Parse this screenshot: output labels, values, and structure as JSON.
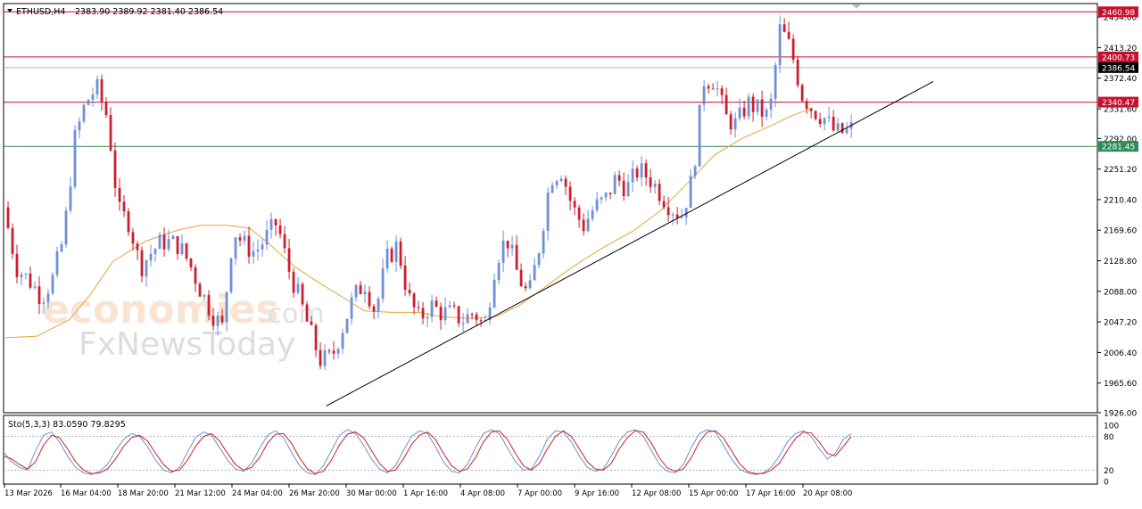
{
  "header": {
    "symbol": "ETHUSD,H4",
    "ohlc": "2383.90 2389.92 2381.40 2386.54",
    "indicator": "Sto(5,3,3) 83.0590 79.8295"
  },
  "watermark": {
    "line1": "economies",
    "line1_suffix": ".com",
    "line2": "FxNewsToday"
  },
  "colors": {
    "bull": "#6f8fd6",
    "bear": "#cc1f2e",
    "ma": "#e8a33c",
    "resistance": "#c8102e",
    "support": "#2e8b57",
    "trend": "#000000",
    "stoch_main": "#6f8fd6",
    "stoch_signal": "#cc1f2e",
    "current_price": "#000000"
  },
  "chart_data": [
    {
      "type": "candlestick",
      "title": "",
      "ylim": [
        1926.0,
        2472.0
      ],
      "y_ticks": [
        "2454.00",
        "2413.20",
        "2372.40",
        "2331.60",
        "2292.00",
        "2251.20",
        "2210.40",
        "2169.60",
        "2128.80",
        "2088.00",
        "2047.20",
        "2006.40",
        "1965.60",
        "1926.00"
      ],
      "x_ticks": [
        "13 Mar 2026",
        "16 Mar 04:00",
        "18 Mar 20:00",
        "21 Mar 12:00",
        "24 Mar 04:00",
        "26 Mar 20:00",
        "30 Mar 00:00",
        "1 Apr 16:00",
        "4 Apr 08:00",
        "7 Apr 00:00",
        "9 Apr 16:00",
        "12 Apr 08:00",
        "15 Apr 00:00",
        "17 Apr 16:00",
        "20 Apr 08:00"
      ],
      "horizontal_levels": [
        {
          "label": "2460.98",
          "value": 2460.98,
          "kind": "resistance"
        },
        {
          "label": "2400.73",
          "value": 2400.73,
          "kind": "resistance"
        },
        {
          "label": "2340.47",
          "value": 2340.47,
          "kind": "resistance"
        },
        {
          "label": "2281.45",
          "value": 2281.45,
          "kind": "support"
        }
      ],
      "current_price": {
        "label": "2386.54",
        "value": 2386.54
      },
      "trendline": {
        "from": [
          0.295,
          1935
        ],
        "to": [
          0.85,
          2368
        ]
      },
      "ma_anchors": [
        [
          0.0,
          2026
        ],
        [
          0.03,
          2028
        ],
        [
          0.06,
          2050
        ],
        [
          0.08,
          2085
        ],
        [
          0.1,
          2128
        ],
        [
          0.13,
          2155
        ],
        [
          0.16,
          2170
        ],
        [
          0.18,
          2176
        ],
        [
          0.205,
          2176
        ],
        [
          0.225,
          2172
        ],
        [
          0.24,
          2155
        ],
        [
          0.265,
          2122
        ],
        [
          0.29,
          2098
        ],
        [
          0.31,
          2080
        ],
        [
          0.33,
          2062
        ],
        [
          0.355,
          2060
        ],
        [
          0.38,
          2060
        ],
        [
          0.4,
          2054
        ],
        [
          0.425,
          2052
        ],
        [
          0.45,
          2054
        ],
        [
          0.47,
          2068
        ],
        [
          0.49,
          2088
        ],
        [
          0.51,
          2110
        ],
        [
          0.53,
          2130
        ],
        [
          0.55,
          2148
        ],
        [
          0.575,
          2168
        ],
        [
          0.6,
          2195
        ],
        [
          0.625,
          2232
        ],
        [
          0.65,
          2270
        ],
        [
          0.675,
          2292
        ],
        [
          0.7,
          2308
        ],
        [
          0.72,
          2322
        ],
        [
          0.74,
          2333
        ]
      ],
      "price_anchors": [
        [
          0.0,
          2200
        ],
        [
          0.012,
          2120
        ],
        [
          0.025,
          2100
        ],
        [
          0.035,
          2080
        ],
        [
          0.045,
          2105
        ],
        [
          0.055,
          2160
        ],
        [
          0.065,
          2290
        ],
        [
          0.075,
          2340
        ],
        [
          0.085,
          2360
        ],
        [
          0.095,
          2320
        ],
        [
          0.105,
          2195
        ],
        [
          0.115,
          2180
        ],
        [
          0.125,
          2120
        ],
        [
          0.135,
          2140
        ],
        [
          0.145,
          2155
        ],
        [
          0.16,
          2150
        ],
        [
          0.17,
          2125
        ],
        [
          0.18,
          2090
        ],
        [
          0.19,
          2060
        ],
        [
          0.2,
          2040
        ],
        [
          0.21,
          2170
        ],
        [
          0.22,
          2150
        ],
        [
          0.23,
          2140
        ],
        [
          0.24,
          2160
        ],
        [
          0.25,
          2180
        ],
        [
          0.26,
          2120
        ],
        [
          0.27,
          2080
        ],
        [
          0.28,
          2035
        ],
        [
          0.29,
          1995
        ],
        [
          0.3,
          2000
        ],
        [
          0.31,
          2040
        ],
        [
          0.32,
          2080
        ],
        [
          0.33,
          2100
        ],
        [
          0.34,
          2060
        ],
        [
          0.35,
          2130
        ],
        [
          0.36,
          2150
        ],
        [
          0.37,
          2080
        ],
        [
          0.38,
          2050
        ],
        [
          0.39,
          2070
        ],
        [
          0.4,
          2060
        ],
        [
          0.41,
          2058
        ],
        [
          0.42,
          2050
        ],
        [
          0.43,
          2060
        ],
        [
          0.44,
          2040
        ],
        [
          0.45,
          2130
        ],
        [
          0.46,
          2160
        ],
        [
          0.47,
          2110
        ],
        [
          0.48,
          2080
        ],
        [
          0.49,
          2150
        ],
        [
          0.5,
          2240
        ],
        [
          0.51,
          2250
        ],
        [
          0.52,
          2200
        ],
        [
          0.53,
          2175
        ],
        [
          0.54,
          2200
        ],
        [
          0.55,
          2210
        ],
        [
          0.56,
          2240
        ],
        [
          0.57,
          2225
        ],
        [
          0.58,
          2250
        ],
        [
          0.59,
          2240
        ],
        [
          0.6,
          2220
        ],
        [
          0.61,
          2200
        ],
        [
          0.62,
          2190
        ],
        [
          0.63,
          2240
        ],
        [
          0.64,
          2370
        ],
        [
          0.65,
          2370
        ],
        [
          0.66,
          2320
        ],
        [
          0.67,
          2310
        ],
        [
          0.68,
          2340
        ],
        [
          0.69,
          2330
        ],
        [
          0.7,
          2320
        ],
        [
          0.71,
          2440
        ],
        [
          0.72,
          2410
        ],
        [
          0.73,
          2350
        ],
        [
          0.74,
          2330
        ],
        [
          0.75,
          2320
        ],
        [
          0.76,
          2300
        ],
        [
          0.77,
          2300
        ],
        [
          0.78,
          2310
        ],
        [
          0.79,
          2330
        ],
        [
          0.8,
          2318
        ]
      ]
    },
    {
      "type": "line",
      "title": "",
      "ylim": [
        0,
        100
      ],
      "y_ticks": [
        "100",
        "80",
        "20",
        "0"
      ],
      "levels": [
        80,
        20
      ],
      "series": [
        {
          "values": [
            52,
            35,
            25,
            20,
            55,
            82,
            88,
            70,
            45,
            25,
            15,
            12,
            18,
            30,
            55,
            75,
            85,
            80,
            62,
            38,
            20,
            15,
            25,
            52,
            78,
            88,
            82,
            60,
            38,
            22,
            18,
            32,
            58,
            82,
            90,
            78,
            52,
            28,
            15,
            12,
            28,
            55,
            82,
            92,
            85,
            65,
            40,
            22,
            15,
            28,
            55,
            80,
            90,
            85,
            62,
            35,
            18,
            15,
            30,
            60,
            85,
            92,
            85,
            60,
            35,
            20,
            22,
            45,
            75,
            90,
            88,
            70,
            45,
            25,
            18,
            22,
            45,
            72,
            88,
            92,
            80,
            55,
            30,
            18,
            15,
            30,
            60,
            85,
            92,
            88,
            65,
            40,
            22,
            15,
            12,
            15,
            25,
            45,
            70,
            85,
            90,
            80,
            58,
            40,
            50,
            75,
            85
          ]
        },
        {
          "values": [
            45,
            40,
            30,
            22,
            35,
            65,
            82,
            78,
            58,
            35,
            20,
            14,
            15,
            22,
            40,
            62,
            78,
            82,
            72,
            50,
            30,
            18,
            20,
            38,
            62,
            80,
            85,
            72,
            50,
            30,
            20,
            25,
            42,
            68,
            84,
            85,
            68,
            42,
            22,
            14,
            18,
            38,
            65,
            84,
            88,
            78,
            55,
            32,
            18,
            20,
            40,
            65,
            82,
            88,
            75,
            50,
            28,
            18,
            22,
            42,
            70,
            88,
            90,
            75,
            50,
            28,
            20,
            32,
            58,
            80,
            90,
            80,
            58,
            35,
            22,
            20,
            32,
            58,
            78,
            90,
            88,
            68,
            42,
            24,
            18,
            22,
            42,
            70,
            88,
            90,
            78,
            55,
            32,
            18,
            14,
            14,
            20,
            32,
            55,
            76,
            88,
            86,
            70,
            50,
            45,
            62,
            80
          ]
        }
      ]
    }
  ]
}
